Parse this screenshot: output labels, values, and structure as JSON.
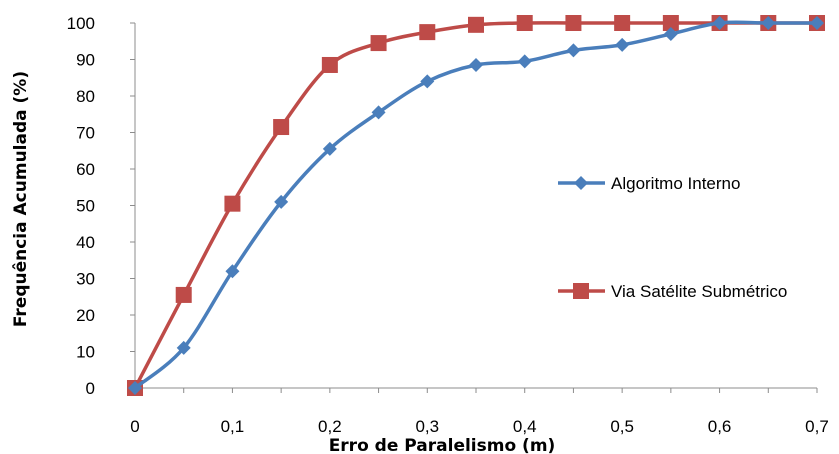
{
  "chart_data": {
    "type": "line",
    "title": "",
    "xlabel": "Erro de Paralelismo (m)",
    "ylabel": "Frequência Acumulada (%)",
    "x": [
      0,
      0.05,
      0.1,
      0.15,
      0.2,
      0.25,
      0.3,
      0.35,
      0.4,
      0.45,
      0.5,
      0.55,
      0.6,
      0.65,
      0.7
    ],
    "x_ticks": [
      "0",
      "0,1",
      "0,2",
      "0,3",
      "0,4",
      "0,5",
      "0,6",
      "0,7"
    ],
    "x_tick_values": [
      0,
      0.1,
      0.2,
      0.3,
      0.4,
      0.5,
      0.6,
      0.7
    ],
    "xlim": [
      0,
      0.7
    ],
    "y_ticks": [
      "0",
      "10",
      "20",
      "30",
      "40",
      "50",
      "60",
      "70",
      "80",
      "90",
      "100"
    ],
    "y_tick_values": [
      0,
      10,
      20,
      30,
      40,
      50,
      60,
      70,
      80,
      90,
      100
    ],
    "ylim": [
      0,
      100
    ],
    "grid": false,
    "legend_position": "right",
    "series": [
      {
        "name": "Algoritmo Interno",
        "color": "#4A7EBB",
        "marker": "diamond",
        "values": [
          0,
          11,
          32,
          51,
          65.5,
          75.5,
          84,
          88.5,
          89.5,
          92.5,
          94,
          97,
          100,
          100,
          100
        ]
      },
      {
        "name": "Via Satélite Submétrico",
        "color": "#BE4B48",
        "marker": "square",
        "values": [
          0,
          25.5,
          50.5,
          71.5,
          88.5,
          94.5,
          97.5,
          99.5,
          100,
          100,
          100,
          100,
          100,
          100,
          100
        ]
      }
    ]
  }
}
